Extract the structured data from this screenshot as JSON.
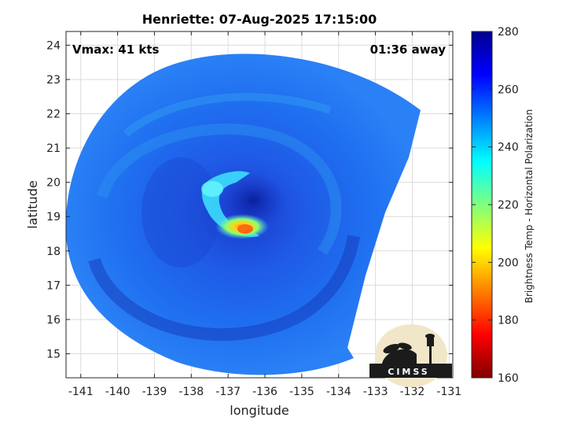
{
  "chart_data": {
    "type": "heatmap",
    "title": "Henriette: 07-Aug-2025 17:15:00",
    "xlabel": "longitude",
    "ylabel": "latitude",
    "xlim": [
      -141.4,
      -130.9
    ],
    "ylim": [
      14.3,
      24.4
    ],
    "xticks": [
      -141,
      -140,
      -139,
      -138,
      -137,
      -136,
      -135,
      -134,
      -133,
      -132,
      -131
    ],
    "yticks": [
      15,
      16,
      17,
      18,
      19,
      20,
      21,
      22,
      23,
      24
    ],
    "grid": true,
    "annotations": {
      "left": "Vmax: 41 kts",
      "right": "01:36 away"
    },
    "colorbar": {
      "label": "Brightness Temp - Horizontal Polarization",
      "range": [
        160,
        280
      ],
      "ticks": [
        160,
        180,
        200,
        220,
        240,
        260,
        280
      ],
      "colors": [
        "#7f0000",
        "#ff0000",
        "#ff7f00",
        "#ffff00",
        "#7fff7f",
        "#00ffff",
        "#007fff",
        "#0000ff",
        "#00008f"
      ]
    },
    "storm_center": {
      "lon": -136.2,
      "lat": 19.6
    },
    "eyewall_min_temp": {
      "lon": -136.6,
      "lat": 18.5,
      "value": 192
    },
    "logo": "CIMSS"
  }
}
